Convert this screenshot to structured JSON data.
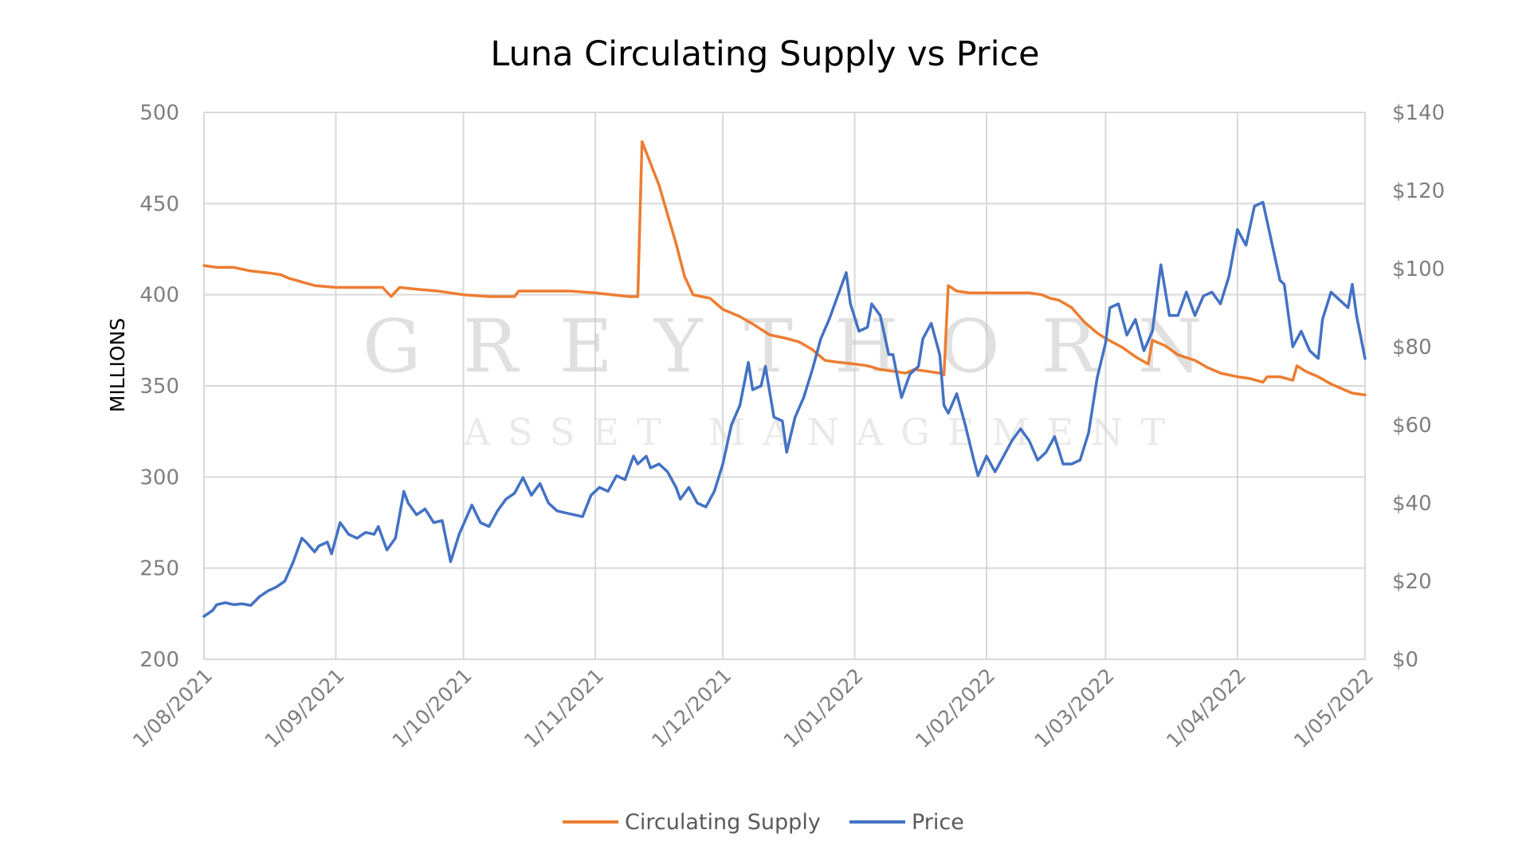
{
  "chart_data": {
    "type": "line",
    "title": "Luna Circulating Supply vs Price",
    "xlabel": "",
    "ylabel": "MILLIONS",
    "y2label": "",
    "ylim": [
      200,
      500
    ],
    "y2lim": [
      0,
      140
    ],
    "yticks": [
      "500",
      "450",
      "400",
      "350",
      "300",
      "250",
      "200"
    ],
    "y2ticks": [
      "$140",
      "$120",
      "$100",
      "$80",
      "$60",
      "$40",
      "$20",
      "$0"
    ],
    "xticks": [
      "1/08/2021",
      "1/09/2021",
      "1/10/2021",
      "1/11/2021",
      "1/12/2021",
      "1/01/2022",
      "1/02/2022",
      "1/03/2022",
      "1/04/2022",
      "1/05/2022"
    ],
    "grid": true,
    "legend_position": "bottom",
    "watermark": {
      "line1": "GREYTHORN",
      "line2": "ASSET MANAGEMENT"
    },
    "series": [
      {
        "name": "Circulating Supply",
        "axis": "left",
        "color": "#ED7D31",
        "points": [
          [
            "2021-08-01",
            416
          ],
          [
            "2021-08-04",
            415
          ],
          [
            "2021-08-08",
            415
          ],
          [
            "2021-08-12",
            413
          ],
          [
            "2021-08-16",
            412
          ],
          [
            "2021-08-19",
            411
          ],
          [
            "2021-08-21",
            409
          ],
          [
            "2021-08-24",
            407
          ],
          [
            "2021-08-27",
            405
          ],
          [
            "2021-09-01",
            404
          ],
          [
            "2021-09-07",
            404
          ],
          [
            "2021-09-12",
            404
          ],
          [
            "2021-09-14",
            399
          ],
          [
            "2021-09-16",
            404
          ],
          [
            "2021-09-20",
            403
          ],
          [
            "2021-09-25",
            402
          ],
          [
            "2021-10-01",
            400
          ],
          [
            "2021-10-07",
            399
          ],
          [
            "2021-10-13",
            399
          ],
          [
            "2021-10-14",
            402
          ],
          [
            "2021-10-20",
            402
          ],
          [
            "2021-10-26",
            402
          ],
          [
            "2021-11-01",
            401
          ],
          [
            "2021-11-05",
            400
          ],
          [
            "2021-11-09",
            399
          ],
          [
            "2021-11-11",
            399
          ],
          [
            "2021-11-12",
            484
          ],
          [
            "2021-11-16",
            460
          ],
          [
            "2021-11-20",
            428
          ],
          [
            "2021-11-22",
            410
          ],
          [
            "2021-11-24",
            400
          ],
          [
            "2021-11-26",
            399
          ],
          [
            "2021-11-28",
            398
          ],
          [
            "2021-12-01",
            392
          ],
          [
            "2021-12-05",
            388
          ],
          [
            "2021-12-08",
            384
          ],
          [
            "2021-12-12",
            378
          ],
          [
            "2021-12-16",
            376
          ],
          [
            "2021-12-19",
            374
          ],
          [
            "2021-12-22",
            370
          ],
          [
            "2021-12-25",
            364
          ],
          [
            "2021-12-28",
            363
          ],
          [
            "2022-01-01",
            362
          ],
          [
            "2022-01-04",
            361
          ],
          [
            "2022-01-07",
            359
          ],
          [
            "2022-01-10",
            358
          ],
          [
            "2022-01-13",
            357
          ],
          [
            "2022-01-15",
            359
          ],
          [
            "2022-01-18",
            358
          ],
          [
            "2022-01-21",
            357
          ],
          [
            "2022-01-22",
            356
          ],
          [
            "2022-01-23",
            405
          ],
          [
            "2022-01-25",
            402
          ],
          [
            "2022-01-28",
            401
          ],
          [
            "2022-02-01",
            401
          ],
          [
            "2022-02-07",
            401
          ],
          [
            "2022-02-11",
            401
          ],
          [
            "2022-02-14",
            400
          ],
          [
            "2022-02-16",
            398
          ],
          [
            "2022-02-18",
            397
          ],
          [
            "2022-02-21",
            393
          ],
          [
            "2022-02-24",
            385
          ],
          [
            "2022-02-27",
            379
          ],
          [
            "2022-03-01",
            376
          ],
          [
            "2022-03-05",
            371
          ],
          [
            "2022-03-08",
            366
          ],
          [
            "2022-03-11",
            362
          ],
          [
            "2022-03-12",
            375
          ],
          [
            "2022-03-15",
            372
          ],
          [
            "2022-03-18",
            367
          ],
          [
            "2022-03-22",
            364
          ],
          [
            "2022-03-25",
            360
          ],
          [
            "2022-03-28",
            357
          ],
          [
            "2022-04-01",
            355
          ],
          [
            "2022-04-04",
            354
          ],
          [
            "2022-04-07",
            352
          ],
          [
            "2022-04-08",
            355
          ],
          [
            "2022-04-11",
            355
          ],
          [
            "2022-04-14",
            353
          ],
          [
            "2022-04-15",
            361
          ],
          [
            "2022-04-17",
            358
          ],
          [
            "2022-04-20",
            355
          ],
          [
            "2022-04-23",
            351
          ],
          [
            "2022-04-26",
            348
          ],
          [
            "2022-04-28",
            346
          ],
          [
            "2022-05-01",
            345
          ]
        ]
      },
      {
        "name": "Price",
        "axis": "right",
        "color": "#4472C4",
        "points": [
          [
            "2021-08-01",
            11
          ],
          [
            "2021-08-03",
            12.5
          ],
          [
            "2021-08-04",
            14
          ],
          [
            "2021-08-06",
            14.5
          ],
          [
            "2021-08-08",
            14
          ],
          [
            "2021-08-10",
            14.2
          ],
          [
            "2021-08-12",
            13.8
          ],
          [
            "2021-08-14",
            16
          ],
          [
            "2021-08-16",
            17.5
          ],
          [
            "2021-08-18",
            18.5
          ],
          [
            "2021-08-20",
            20
          ],
          [
            "2021-08-22",
            25
          ],
          [
            "2021-08-24",
            31
          ],
          [
            "2021-08-25",
            30
          ],
          [
            "2021-08-27",
            27.5
          ],
          [
            "2021-08-28",
            29
          ],
          [
            "2021-08-30",
            30
          ],
          [
            "2021-08-31",
            27
          ],
          [
            "2021-09-02",
            35
          ],
          [
            "2021-09-04",
            32
          ],
          [
            "2021-09-06",
            31
          ],
          [
            "2021-09-08",
            32.5
          ],
          [
            "2021-09-10",
            32
          ],
          [
            "2021-09-11",
            34
          ],
          [
            "2021-09-13",
            28
          ],
          [
            "2021-09-15",
            31
          ],
          [
            "2021-09-17",
            43
          ],
          [
            "2021-09-18",
            40
          ],
          [
            "2021-09-20",
            37
          ],
          [
            "2021-09-22",
            38.5
          ],
          [
            "2021-09-24",
            35
          ],
          [
            "2021-09-26",
            35.5
          ],
          [
            "2021-09-28",
            25
          ],
          [
            "2021-09-30",
            32
          ],
          [
            "2021-10-03",
            39.5
          ],
          [
            "2021-10-05",
            35
          ],
          [
            "2021-10-07",
            34
          ],
          [
            "2021-10-09",
            38
          ],
          [
            "2021-10-11",
            41
          ],
          [
            "2021-10-13",
            42.5
          ],
          [
            "2021-10-15",
            46.5
          ],
          [
            "2021-10-17",
            42
          ],
          [
            "2021-10-19",
            45
          ],
          [
            "2021-10-21",
            40
          ],
          [
            "2021-10-23",
            38
          ],
          [
            "2021-10-25",
            37.5
          ],
          [
            "2021-10-27",
            37
          ],
          [
            "2021-10-29",
            36.5
          ],
          [
            "2021-10-31",
            42
          ],
          [
            "2021-11-02",
            44
          ],
          [
            "2021-11-04",
            43
          ],
          [
            "2021-11-06",
            47
          ],
          [
            "2021-11-08",
            46
          ],
          [
            "2021-11-10",
            52
          ],
          [
            "2021-11-11",
            50
          ],
          [
            "2021-11-13",
            52
          ],
          [
            "2021-11-14",
            49
          ],
          [
            "2021-11-16",
            50
          ],
          [
            "2021-11-18",
            48
          ],
          [
            "2021-11-20",
            44
          ],
          [
            "2021-11-21",
            41
          ],
          [
            "2021-11-23",
            44
          ],
          [
            "2021-11-25",
            40
          ],
          [
            "2021-11-27",
            39
          ],
          [
            "2021-11-29",
            43
          ],
          [
            "2021-12-01",
            50
          ],
          [
            "2021-12-03",
            60
          ],
          [
            "2021-12-05",
            65
          ],
          [
            "2021-12-07",
            76
          ],
          [
            "2021-12-08",
            69
          ],
          [
            "2021-12-10",
            70
          ],
          [
            "2021-12-11",
            75
          ],
          [
            "2021-12-13",
            62
          ],
          [
            "2021-12-15",
            61
          ],
          [
            "2021-12-16",
            53
          ],
          [
            "2021-12-18",
            62
          ],
          [
            "2021-12-20",
            67
          ],
          [
            "2021-12-22",
            74
          ],
          [
            "2021-12-24",
            82
          ],
          [
            "2021-12-26",
            87
          ],
          [
            "2021-12-28",
            93
          ],
          [
            "2021-12-30",
            99
          ],
          [
            "2021-12-31",
            91
          ],
          [
            "2022-01-02",
            84
          ],
          [
            "2022-01-04",
            85
          ],
          [
            "2022-01-05",
            91
          ],
          [
            "2022-01-07",
            88
          ],
          [
            "2022-01-09",
            78
          ],
          [
            "2022-01-10",
            78
          ],
          [
            "2022-01-12",
            67
          ],
          [
            "2022-01-14",
            73
          ],
          [
            "2022-01-16",
            75
          ],
          [
            "2022-01-17",
            82
          ],
          [
            "2022-01-19",
            86
          ],
          [
            "2022-01-21",
            78
          ],
          [
            "2022-01-22",
            65
          ],
          [
            "2022-01-23",
            63
          ],
          [
            "2022-01-25",
            68
          ],
          [
            "2022-01-27",
            60
          ],
          [
            "2022-01-29",
            51
          ],
          [
            "2022-01-30",
            47
          ],
          [
            "2022-02-01",
            52
          ],
          [
            "2022-02-03",
            48
          ],
          [
            "2022-02-05",
            52
          ],
          [
            "2022-02-07",
            56
          ],
          [
            "2022-02-09",
            59
          ],
          [
            "2022-02-11",
            56
          ],
          [
            "2022-02-13",
            51
          ],
          [
            "2022-02-15",
            53
          ],
          [
            "2022-02-17",
            57
          ],
          [
            "2022-02-19",
            50
          ],
          [
            "2022-02-21",
            50
          ],
          [
            "2022-02-23",
            51
          ],
          [
            "2022-02-25",
            58
          ],
          [
            "2022-02-27",
            72
          ],
          [
            "2022-03-01",
            81
          ],
          [
            "2022-03-02",
            90
          ],
          [
            "2022-03-04",
            91
          ],
          [
            "2022-03-06",
            83
          ],
          [
            "2022-03-08",
            87
          ],
          [
            "2022-03-10",
            79
          ],
          [
            "2022-03-12",
            84
          ],
          [
            "2022-03-14",
            101
          ],
          [
            "2022-03-16",
            88
          ],
          [
            "2022-03-18",
            88
          ],
          [
            "2022-03-20",
            94
          ],
          [
            "2022-03-22",
            88
          ],
          [
            "2022-03-24",
            93
          ],
          [
            "2022-03-26",
            94
          ],
          [
            "2022-03-28",
            91
          ],
          [
            "2022-03-30",
            98
          ],
          [
            "2022-04-01",
            110
          ],
          [
            "2022-04-03",
            106
          ],
          [
            "2022-04-05",
            116
          ],
          [
            "2022-04-07",
            117
          ],
          [
            "2022-04-09",
            107
          ],
          [
            "2022-04-11",
            97
          ],
          [
            "2022-04-12",
            96
          ],
          [
            "2022-04-14",
            80
          ],
          [
            "2022-04-16",
            84
          ],
          [
            "2022-04-18",
            79
          ],
          [
            "2022-04-20",
            77
          ],
          [
            "2022-04-21",
            87
          ],
          [
            "2022-04-23",
            94
          ],
          [
            "2022-04-25",
            92
          ],
          [
            "2022-04-27",
            90
          ],
          [
            "2022-04-28",
            96
          ],
          [
            "2022-04-29",
            88
          ],
          [
            "2022-05-01",
            77
          ]
        ]
      }
    ]
  }
}
